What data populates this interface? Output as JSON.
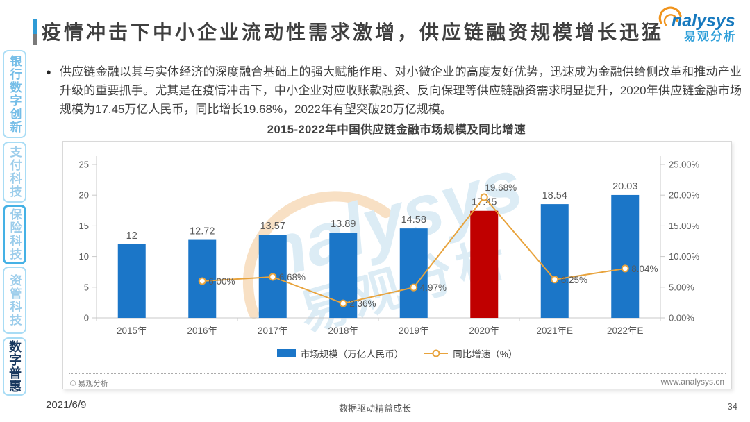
{
  "header": {
    "title": "疫情冲击下中小企业流动性需求激增，供应链融资规模增长迅猛",
    "logo": {
      "brand": "nalysys",
      "brand_cn": "易观分析"
    }
  },
  "sidebar": {
    "tabs": [
      {
        "label": "银行数字创新"
      },
      {
        "label": "支付科技"
      },
      {
        "label": "保险科技"
      },
      {
        "label": "资管科技"
      },
      {
        "label": "数字普惠"
      }
    ]
  },
  "body": {
    "bullet_text": "供应链金融以其与实体经济的深度融合基础上的强大赋能作用、对小微企业的高度友好优势，迅速成为金融供给侧改革和推动产业升级的重要抓手。尤其是在疫情冲击下，中小企业对应收账款融资、反向保理等供应链融资需求明显提升，2020年供应链金融市场规模为17.45万亿人民币，同比增长19.68%，2022年有望突破20万亿规模。"
  },
  "chart_data": {
    "type": "bar+line",
    "title": "2015-2022年中国供应链金融市场规模及同比增速",
    "categories": [
      "2015年",
      "2016年",
      "2017年",
      "2018年",
      "2019年",
      "2020年",
      "2021年E",
      "2022年E"
    ],
    "series": [
      {
        "name": "市场规模（万亿人民币）",
        "type": "bar",
        "values": [
          12,
          12.72,
          13.57,
          13.89,
          14.58,
          17.45,
          18.54,
          20.03
        ],
        "labels": [
          "12",
          "12.72",
          "13.57",
          "13.89",
          "14.58",
          "17.45",
          "18.54",
          "20.03"
        ]
      },
      {
        "name": "同比增速（%）",
        "type": "line",
        "values": [
          null,
          6.0,
          6.68,
          2.36,
          4.97,
          19.68,
          6.25,
          8.04
        ],
        "labels": [
          null,
          "6.00%",
          "6.68%",
          "2.36%",
          "4.97%",
          "19.68%",
          "6.25%",
          "8.04%"
        ]
      }
    ],
    "left_axis": {
      "min": 0,
      "max": 25,
      "ticks": [
        "0",
        "5",
        "10",
        "15",
        "20",
        "25"
      ]
    },
    "right_axis": {
      "min": 0,
      "max": 25,
      "ticks": [
        "0.00%",
        "5.00%",
        "10.00%",
        "15.00%",
        "20.00%",
        "25.00%"
      ]
    },
    "highlight_category": "2020年",
    "legend_position": "bottom",
    "grid": false,
    "colors": {
      "bar": "#1B76C8",
      "bar_highlight": "#C00000",
      "line": "#E8A33C",
      "axis": "#C9C9C9",
      "label": "#595959"
    },
    "legend": [
      {
        "label": "市场规模（万亿人民币）"
      },
      {
        "label": "同比增速（%）"
      }
    ],
    "watermark": {
      "text_en": "nalysys",
      "text_cn": "易观分析"
    },
    "footnote_left": "© 易观分析",
    "footnote_right": "www.analysys.cn"
  },
  "footer": {
    "date": "2021/6/9",
    "slogan": "数据驱动精益成长",
    "page": "34"
  }
}
